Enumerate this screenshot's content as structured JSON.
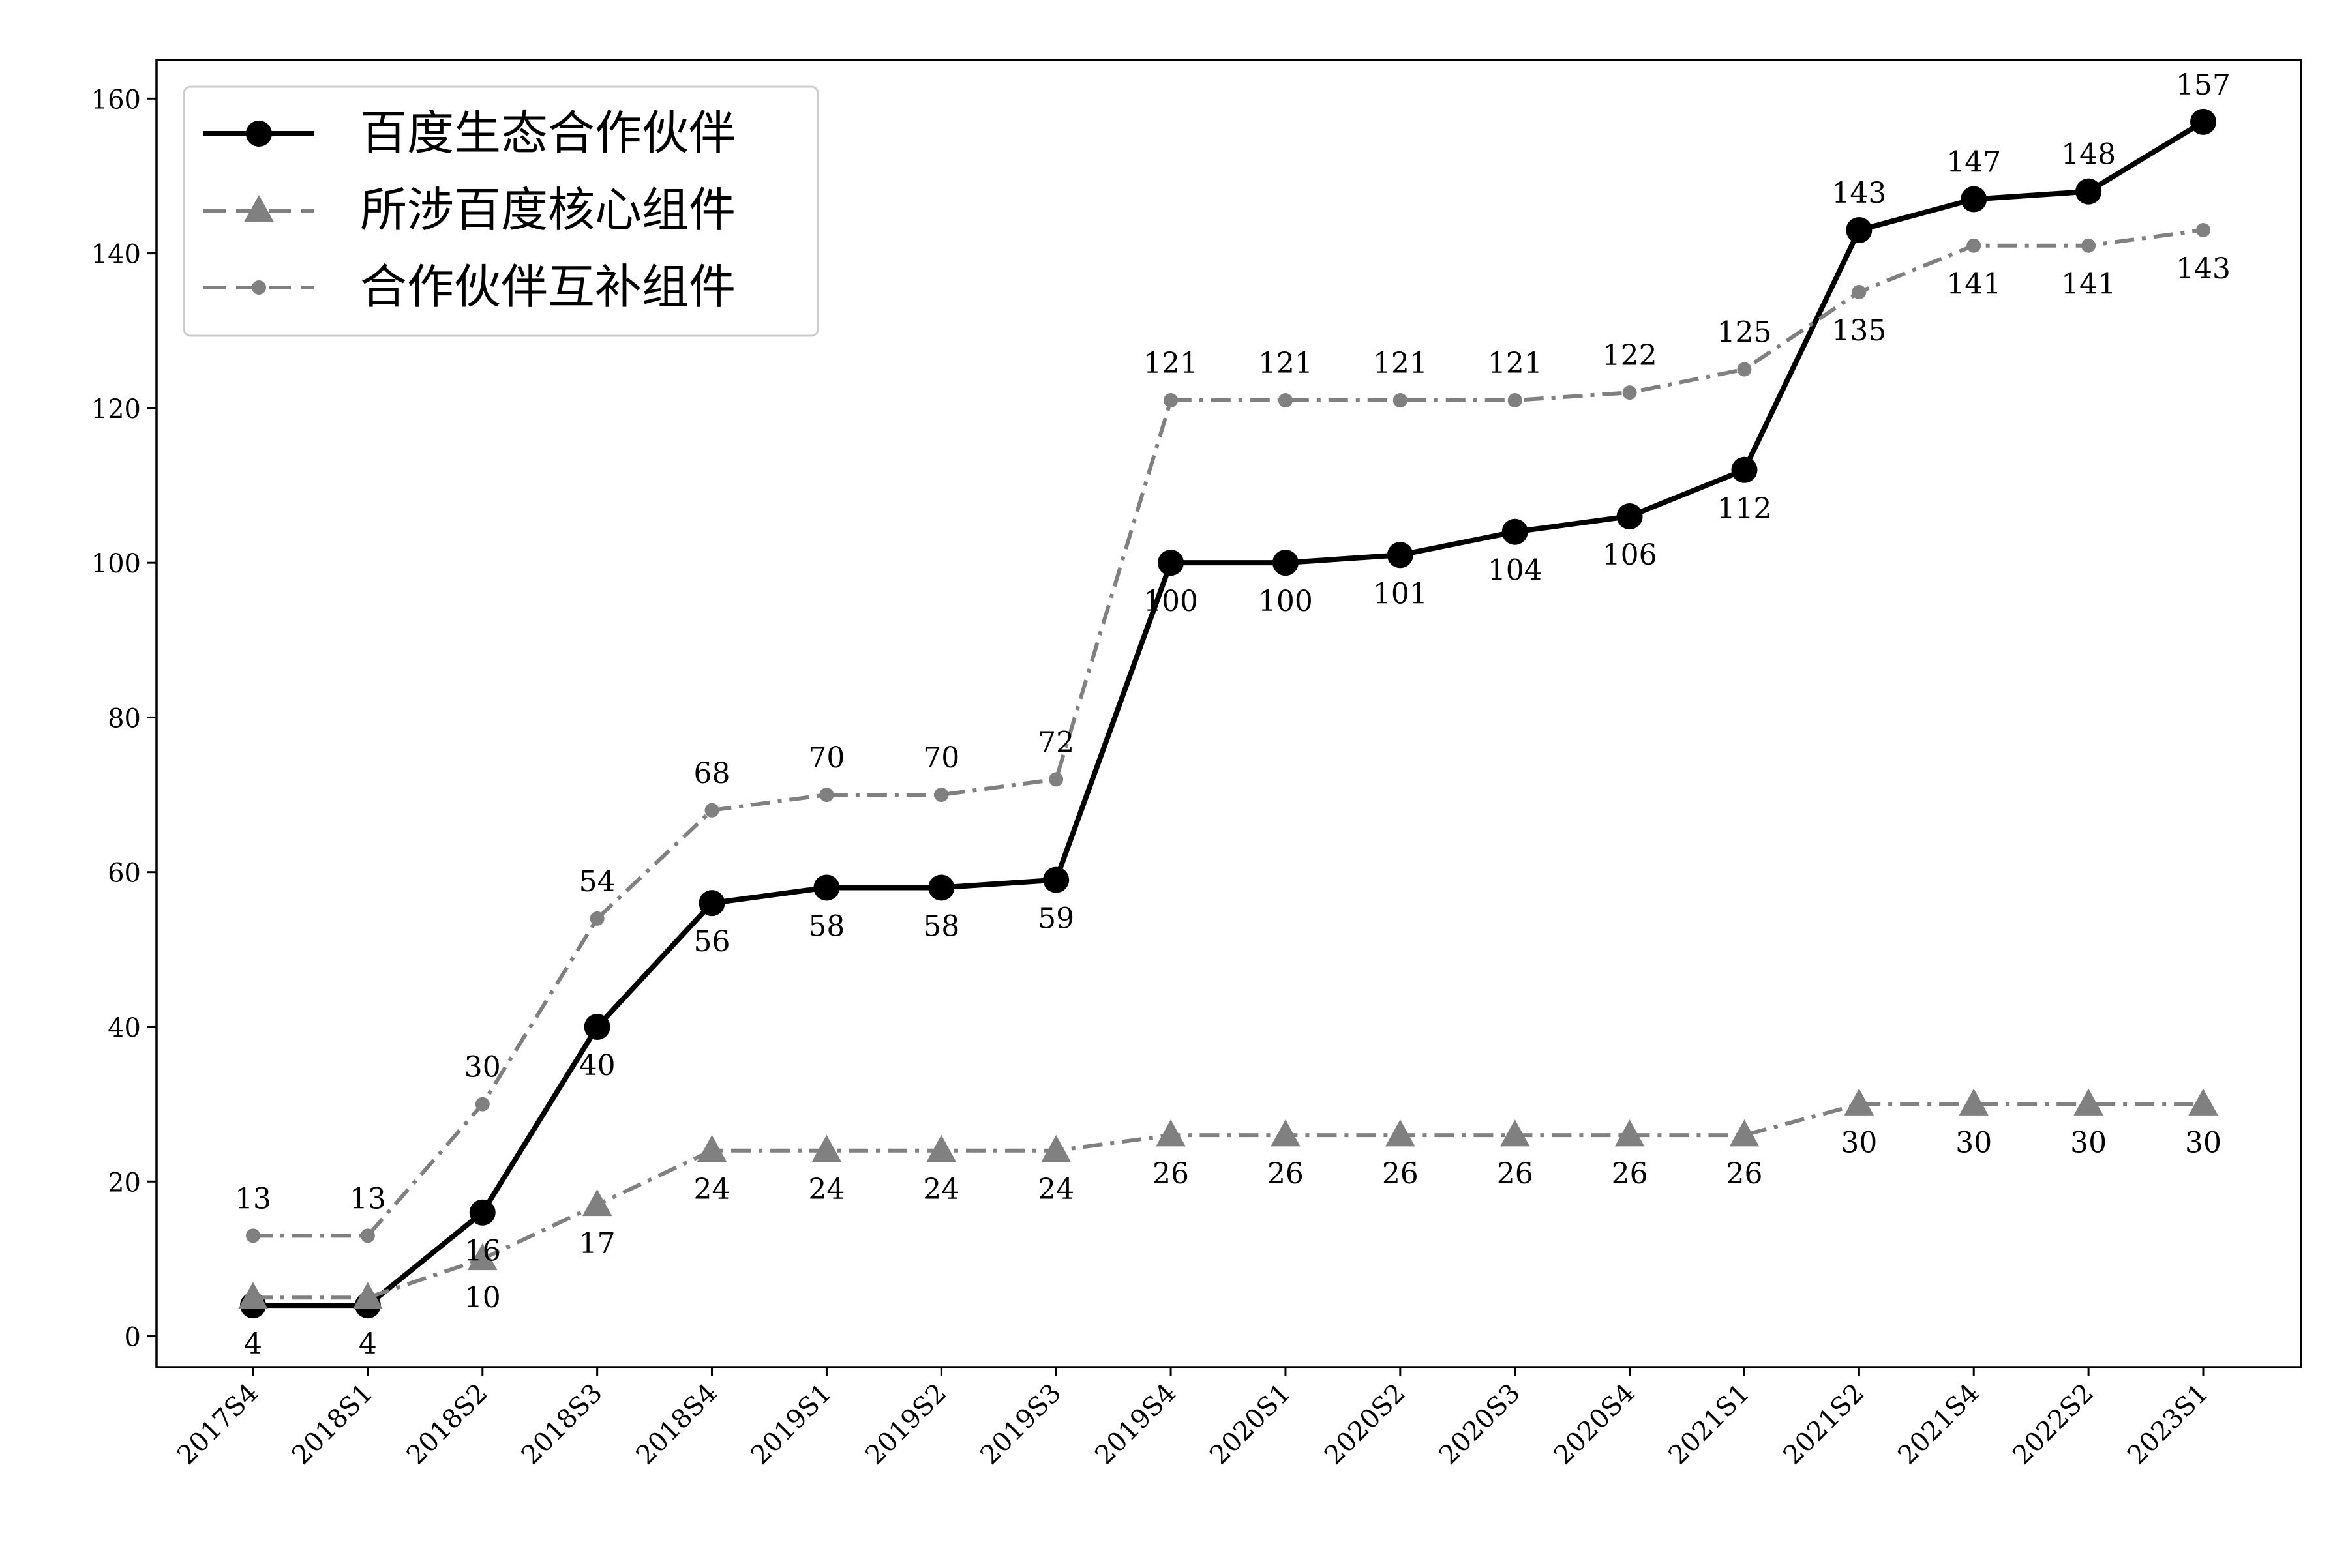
{
  "chart_data": {
    "type": "line",
    "title": "",
    "xlabel": "",
    "ylabel": "",
    "categories": [
      "2017S4",
      "2018S1",
      "2018S2",
      "2018S3",
      "2018S4",
      "2019S1",
      "2019S2",
      "2019S3",
      "2019S4",
      "2020S1",
      "2020S2",
      "2020S3",
      "2020S4",
      "2021S1",
      "2021S2",
      "2021S4",
      "2022S2",
      "2023S1"
    ],
    "ylim": [
      -4,
      165
    ],
    "yticks": [
      0,
      20,
      40,
      60,
      80,
      100,
      120,
      140,
      160
    ],
    "grid": false,
    "legend_position": "top-left",
    "series": [
      {
        "name": "百度生态合作伙伴",
        "values": [
          4,
          4,
          16,
          40,
          56,
          58,
          58,
          59,
          100,
          100,
          101,
          104,
          106,
          112,
          143,
          147,
          148,
          157
        ],
        "color": "#000000",
        "line_style": "solid",
        "marker": "circle",
        "label_position": "mixed"
      },
      {
        "name": "所涉百度核心组件",
        "values": [
          5,
          5,
          10,
          17,
          24,
          24,
          24,
          24,
          26,
          26,
          26,
          26,
          26,
          26,
          30,
          30,
          30,
          30
        ],
        "data_labels": [
          "",
          "",
          "10",
          "17",
          "24",
          "24",
          "24",
          "24",
          "26",
          "26",
          "26",
          "26",
          "26",
          "26",
          "30",
          "30",
          "30",
          "30"
        ],
        "color": "#808080",
        "line_style": "dashdot",
        "marker": "triangle",
        "label_position": "below"
      },
      {
        "name": "合作伙伴互补组件",
        "values": [
          13,
          13,
          30,
          54,
          68,
          70,
          70,
          72,
          121,
          121,
          121,
          121,
          122,
          125,
          135,
          141,
          141,
          143
        ],
        "color": "#808080",
        "line_style": "dashdot",
        "marker": "small-circle",
        "label_position": "mixed"
      }
    ]
  }
}
